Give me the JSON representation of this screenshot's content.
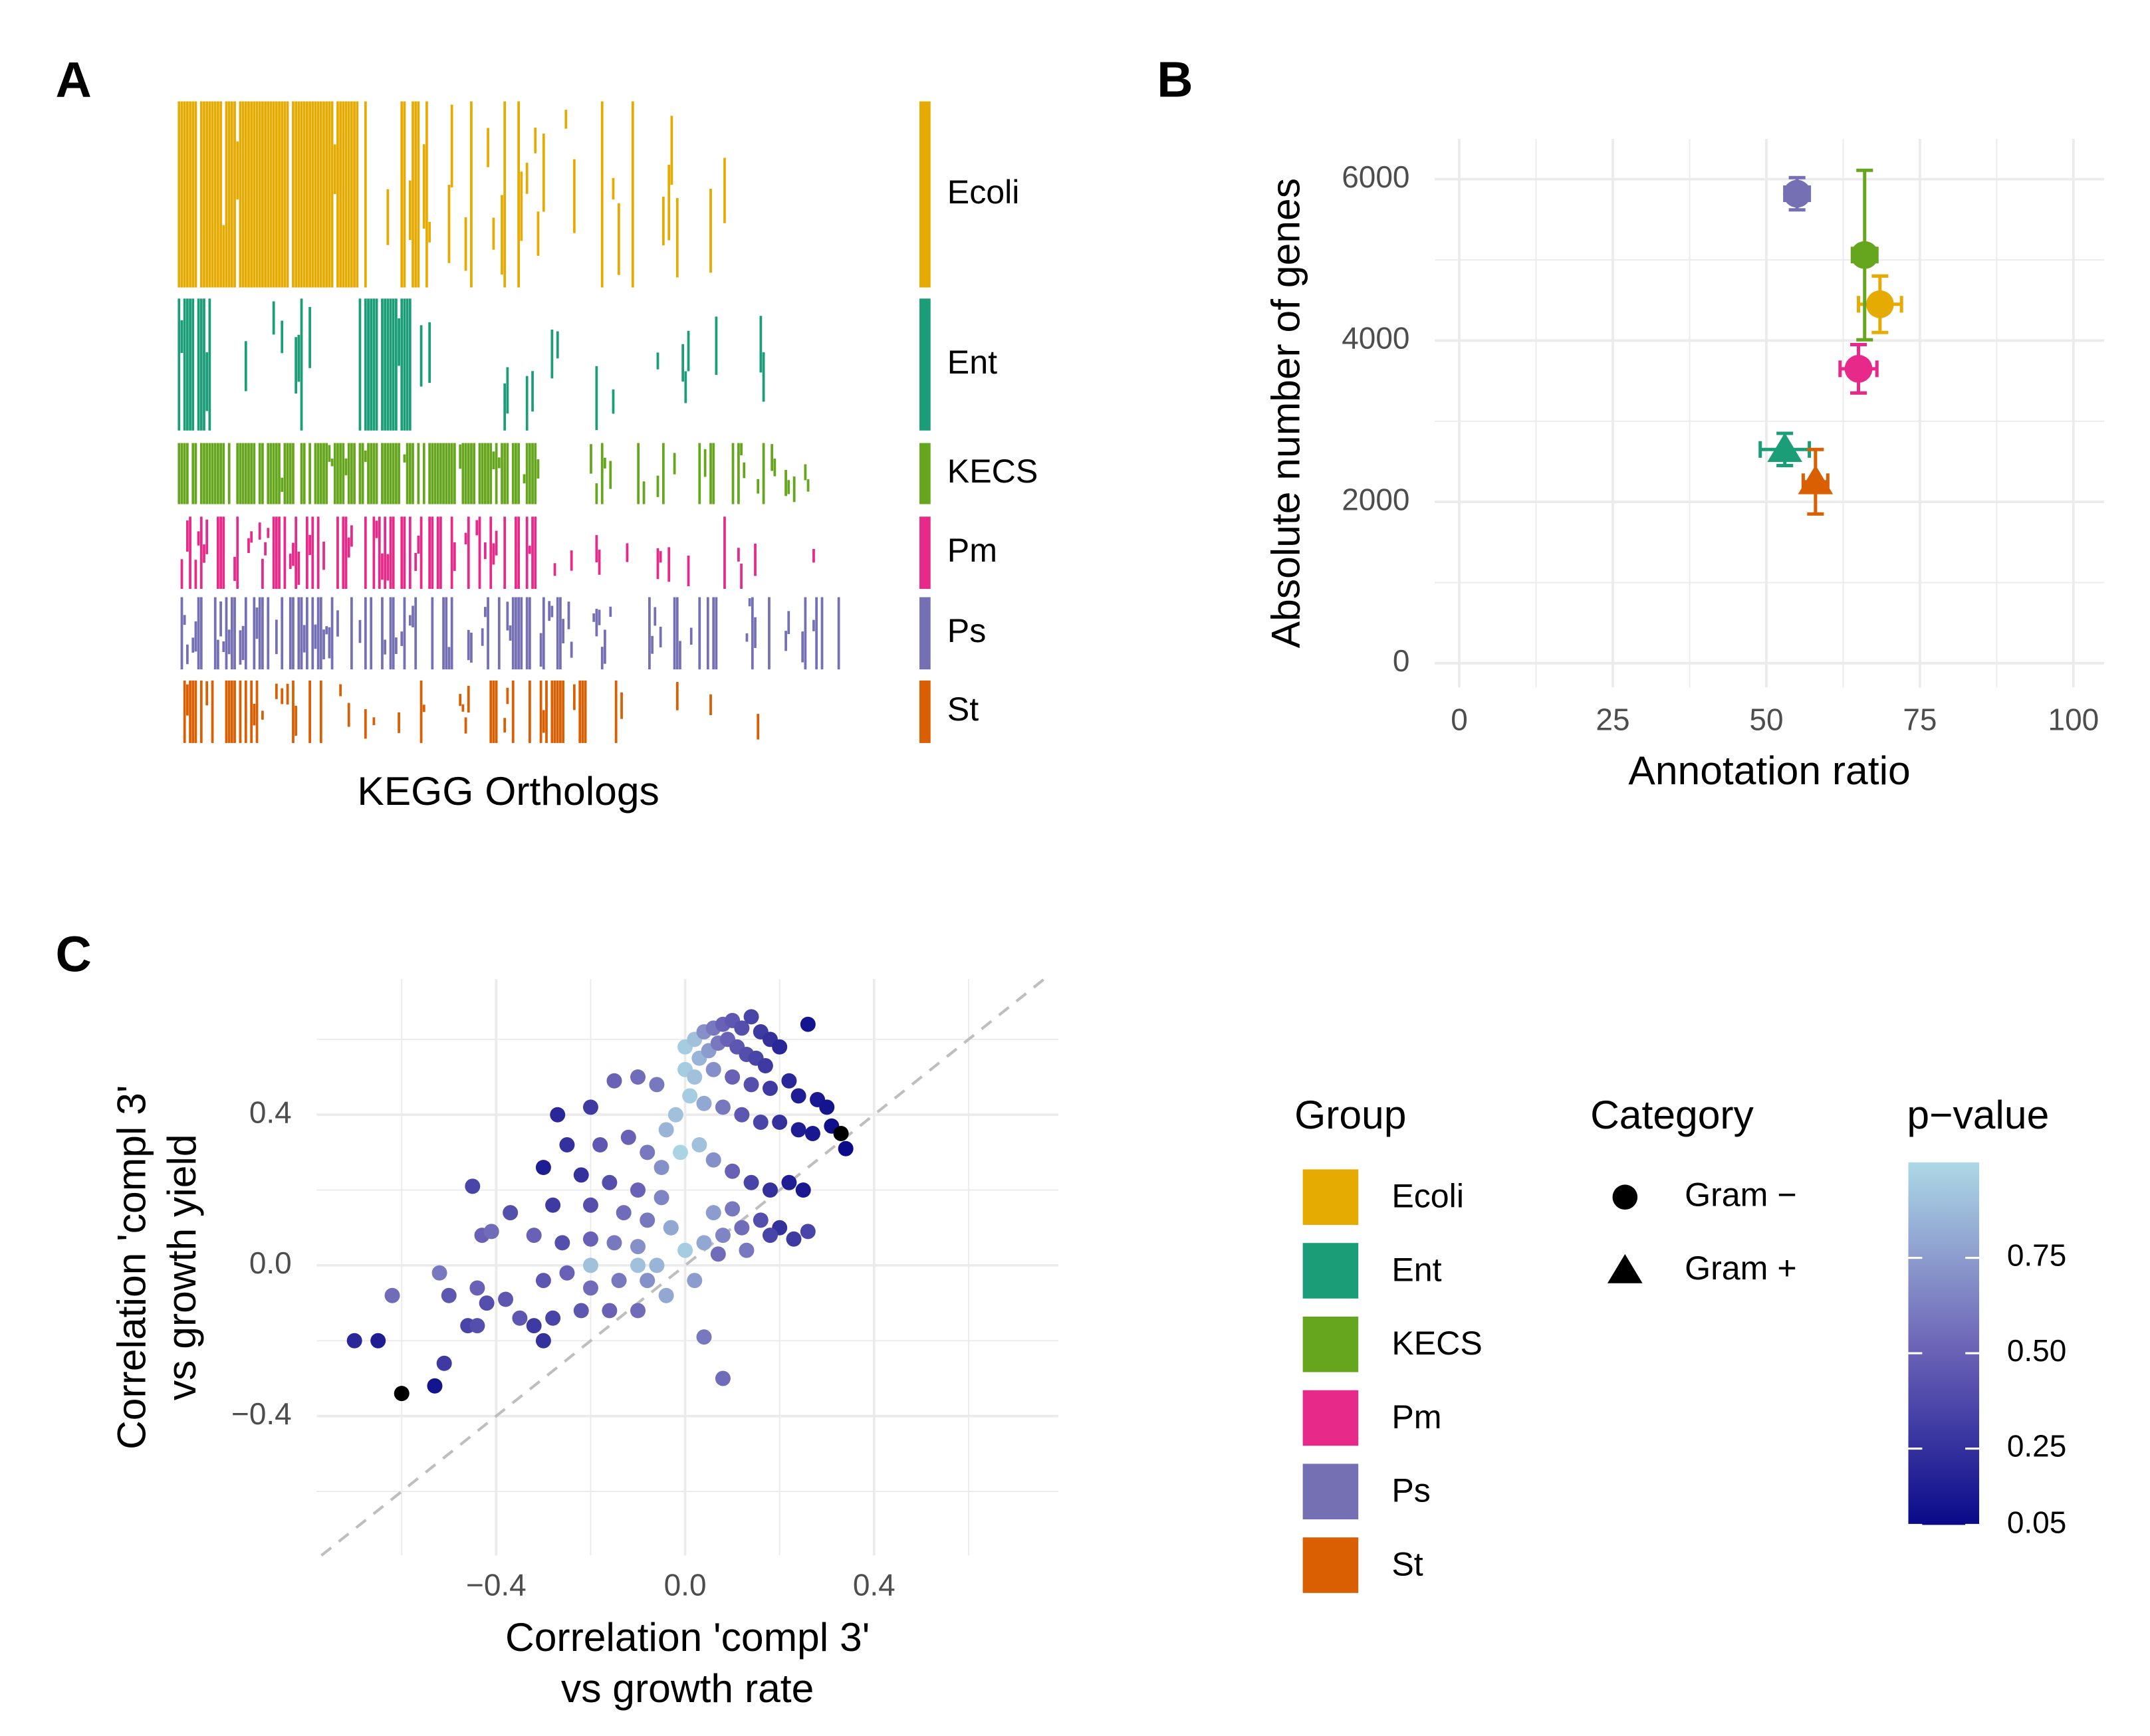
{
  "chart_data": [
    {
      "type": "heatmap",
      "panel_label": "A",
      "xlabel": "KEGG Orthologs",
      "groups": [
        {
          "name": "Ecoli",
          "color": "#E6AB02"
        },
        {
          "name": "Ent",
          "color": "#1B9E77"
        },
        {
          "name": "KECS",
          "color": "#66A61E"
        },
        {
          "name": "Pm",
          "color": "#E7298A"
        },
        {
          "name": "Ps",
          "color": "#7570B3"
        },
        {
          "name": "St",
          "color": "#D95F02"
        }
      ]
    },
    {
      "type": "errorbar-scatter",
      "panel_label": "B",
      "xlabel": "Annotation ratio",
      "ylabel": "Absolute number of genes",
      "xlim": [
        -4,
        105
      ],
      "ylim": [
        -300,
        6500
      ],
      "xticks": [
        0,
        25,
        50,
        75,
        100
      ],
      "yticks": [
        0,
        2000,
        4000,
        6000
      ],
      "grid": true,
      "series": [
        {
          "name": "Ecoli",
          "color": "#E6AB02",
          "shape": "circle",
          "x": [
            68.5
          ],
          "y": [
            4450
          ],
          "xerr": [
            3.5
          ],
          "yerr": [
            350
          ]
        },
        {
          "name": "Ent",
          "color": "#1B9E77",
          "shape": "triangle",
          "x": [
            53
          ],
          "y": [
            2650
          ],
          "xerr": [
            4
          ],
          "yerr": [
            200
          ]
        },
        {
          "name": "KECS",
          "color": "#66A61E",
          "shape": "circle",
          "x": [
            66
          ],
          "y": [
            5060
          ],
          "xerr": [
            2
          ],
          "yerr": [
            1050
          ]
        },
        {
          "name": "Pm",
          "color": "#E7298A",
          "shape": "circle",
          "x": [
            65
          ],
          "y": [
            3650
          ],
          "xerr": [
            3
          ],
          "yerr": [
            300
          ]
        },
        {
          "name": "Ps",
          "color": "#7570B3",
          "shape": "circle",
          "x": [
            55
          ],
          "y": [
            5820
          ],
          "xerr": [
            2
          ],
          "yerr": [
            200
          ]
        },
        {
          "name": "St",
          "color": "#D95F02",
          "shape": "triangle",
          "x": [
            58
          ],
          "y": [
            2250
          ],
          "xerr": [
            2
          ],
          "yerr": [
            400
          ]
        }
      ],
      "legend": {
        "group_title": "Group",
        "shape_title": "Category",
        "shapes": [
          {
            "name": "Gram −",
            "shape": "circle"
          },
          {
            "name": "Gram +",
            "shape": "triangle"
          }
        ]
      }
    },
    {
      "type": "scatter",
      "panel_label": "C",
      "xlabel": [
        "Correlation 'compl 3'",
        "vs growth rate"
      ],
      "ylabel": [
        "Correlation 'compl 3'",
        "vs growth yield"
      ],
      "xlim": [
        -0.78,
        0.79
      ],
      "ylim": [
        -0.77,
        0.76
      ],
      "xticks": [
        {
          "value": -0.4,
          "label": "−0.4"
        },
        {
          "value": 0,
          "label": "0.0"
        },
        0.4
      ],
      "yticks": [
        {
          "value": -0.4,
          "label": "−0.4"
        },
        {
          "value": 0,
          "label": "0.0"
        },
        0.4
      ],
      "grid": true,
      "identity_line": true,
      "colorbar": {
        "title": "p−value",
        "lim": [
          0.05,
          1.0
        ],
        "colors": [
          "#0a0a8a",
          "#6e66b8",
          "#add8e6"
        ],
        "na_color": "#000000",
        "ticks": [
          0.05,
          0.25,
          {
            "value": 0.5,
            "label": "0.50"
          },
          0.75
        ]
      },
      "x": [
        0.0,
        0.02,
        0.04,
        0.06,
        0.08,
        0.1,
        0.12,
        0.14,
        0.16,
        0.18,
        0.2,
        0.26,
        0.03,
        0.05,
        0.07,
        0.09,
        0.11,
        0.13,
        0.15,
        0.17,
        0.0,
        0.02,
        0.06,
        0.1,
        0.14,
        0.18,
        0.22,
        0.24,
        0.28,
        0.3,
        0.01,
        0.04,
        0.08,
        0.12,
        0.16,
        0.2,
        0.24,
        0.27,
        0.31,
        0.33,
        0.34,
        -0.02,
        -0.04,
        -0.01,
        0.03,
        0.06,
        0.1,
        0.14,
        0.18,
        0.22,
        0.25,
        0.2,
        0.16,
        0.12,
        0.08,
        0.04,
        0.0,
        0.18,
        0.23,
        0.26,
        0.06,
        0.1,
        -0.15,
        -0.1,
        -0.06,
        -0.2,
        -0.27,
        -0.25,
        -0.18,
        -0.12,
        -0.08,
        -0.05,
        -0.3,
        -0.22,
        -0.16,
        -0.1,
        -0.05,
        -0.45,
        -0.37,
        -0.28,
        -0.2,
        -0.13,
        -0.08,
        -0.03,
        -0.43,
        -0.41,
        -0.32,
        -0.26,
        -0.2,
        -0.15,
        -0.1,
        -0.06,
        -0.1,
        -0.2,
        -0.52,
        -0.44,
        -0.38,
        -0.3,
        -0.25,
        -0.2,
        -0.14,
        -0.08,
        -0.04,
        -0.62,
        -0.5,
        -0.42,
        -0.35,
        -0.28,
        -0.22,
        -0.16,
        -0.1,
        -0.46,
        -0.44,
        -0.32,
        -0.3,
        -0.65,
        -0.7,
        -0.51,
        -0.6,
        -0.53,
        0.04,
        0.08,
        -0.03,
        0.13,
        0.07,
        0.02
      ],
      "y": [
        0.58,
        0.6,
        0.62,
        0.63,
        0.64,
        0.65,
        0.63,
        0.66,
        0.62,
        0.6,
        0.58,
        0.64,
        0.55,
        0.57,
        0.59,
        0.6,
        0.58,
        0.56,
        0.55,
        0.53,
        0.52,
        0.5,
        0.52,
        0.5,
        0.48,
        0.47,
        0.49,
        0.45,
        0.44,
        0.42,
        0.45,
        0.43,
        0.42,
        0.4,
        0.38,
        0.38,
        0.36,
        0.35,
        0.37,
        0.35,
        0.31,
        0.4,
        0.36,
        0.3,
        0.32,
        0.28,
        0.25,
        0.22,
        0.2,
        0.22,
        0.2,
        0.1,
        0.12,
        0.1,
        0.08,
        0.06,
        0.04,
        0.08,
        0.07,
        0.09,
        0.14,
        0.15,
        0.49,
        0.5,
        0.48,
        0.42,
        0.4,
        0.32,
        0.32,
        0.34,
        0.3,
        0.26,
        0.26,
        0.24,
        0.22,
        0.2,
        0.18,
        0.21,
        0.14,
        0.16,
        0.16,
        0.14,
        0.12,
        0.1,
        0.08,
        0.09,
        0.08,
        0.06,
        0.07,
        0.06,
        0.05,
        0.0,
        0.0,
        0.0,
        -0.02,
        -0.06,
        -0.09,
        -0.04,
        -0.02,
        -0.06,
        -0.04,
        -0.04,
        -0.08,
        -0.08,
        -0.08,
        -0.1,
        -0.14,
        -0.14,
        -0.12,
        -0.12,
        -0.12,
        -0.16,
        -0.16,
        -0.16,
        -0.2,
        -0.2,
        -0.2,
        -0.26,
        -0.34,
        -0.32,
        -0.19,
        -0.3,
        0.1,
        0.04,
        0.03,
        -0.04
      ],
      "p": [
        0.95,
        0.9,
        0.7,
        0.6,
        0.5,
        0.45,
        0.4,
        0.35,
        0.3,
        0.25,
        0.2,
        0.1,
        0.85,
        0.75,
        0.6,
        0.5,
        0.45,
        0.4,
        0.35,
        0.3,
        0.95,
        0.9,
        0.7,
        0.5,
        0.4,
        0.3,
        0.2,
        0.15,
        0.12,
        0.1,
        0.95,
        0.8,
        0.6,
        0.45,
        0.35,
        0.25,
        0.15,
        0.12,
        0.08,
        null,
        0.05,
        0.9,
        0.85,
        0.98,
        0.9,
        0.7,
        0.5,
        0.35,
        0.25,
        0.15,
        0.12,
        0.25,
        0.4,
        0.55,
        0.65,
        0.8,
        0.95,
        0.35,
        0.3,
        0.35,
        0.75,
        0.6,
        0.5,
        0.55,
        0.6,
        0.3,
        0.2,
        0.25,
        0.45,
        0.5,
        0.6,
        0.7,
        0.15,
        0.25,
        0.4,
        0.5,
        0.65,
        0.35,
        0.4,
        0.3,
        0.4,
        0.55,
        0.6,
        0.75,
        0.5,
        0.55,
        0.5,
        0.4,
        0.5,
        0.6,
        0.7,
        0.85,
        0.9,
        0.9,
        0.6,
        0.5,
        0.45,
        0.45,
        0.5,
        0.55,
        0.6,
        0.7,
        0.8,
        0.55,
        0.45,
        0.4,
        0.45,
        0.35,
        0.45,
        0.5,
        0.55,
        0.35,
        0.4,
        0.3,
        0.25,
        0.15,
        0.2,
        0.3,
        null,
        0.1,
        0.6,
        0.55,
        0.8,
        0.6,
        0.55,
        0.75
      ]
    }
  ]
}
